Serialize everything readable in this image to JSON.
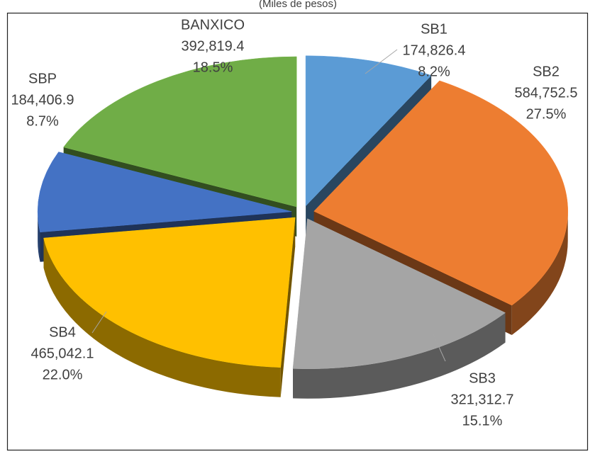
{
  "chart_data": {
    "type": "pie",
    "subtitle": "(Miles de pesos)",
    "categories": [
      "SB1",
      "SB2",
      "SB3",
      "SB4",
      "SBP",
      "BANXICO"
    ],
    "values": [
      174826.4,
      584752.5,
      321312.7,
      465042.1,
      184406.9,
      392819.4
    ],
    "value_labels": [
      "174,826.4",
      "584,752.5",
      "321,312.7",
      "465,042.1",
      "184,406.9",
      "392,819.4"
    ],
    "percentages": [
      8.2,
      27.5,
      15.1,
      22.0,
      8.7,
      18.5
    ],
    "percentage_labels": [
      "8.2%",
      "27.5%",
      "15.1%",
      "22.0%",
      "8.7%",
      "18.5%"
    ],
    "colors": [
      "#5b9bd5",
      "#ed7d31",
      "#a5a5a5",
      "#ffc000",
      "#4472c4",
      "#70ad47"
    ]
  }
}
